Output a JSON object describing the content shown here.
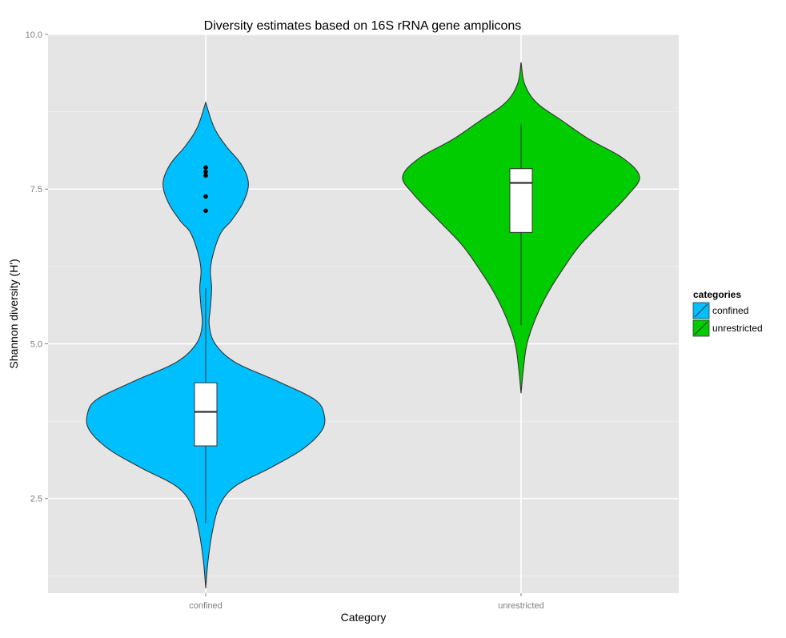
{
  "chart_data": {
    "type": "violin",
    "title": "Diversity estimates based on 16S rRNA gene amplicons",
    "xlabel": "Category",
    "ylabel": "Shannon diversity (H')",
    "categories": [
      "confined",
      "unrestricted"
    ],
    "ylim": [
      0.97,
      10.0
    ],
    "yticks": [
      2.5,
      5.0,
      7.5,
      10.0
    ],
    "ytick_labels": [
      "2.5",
      "5.0",
      "7.5",
      "10.0"
    ],
    "grid": true,
    "legend": {
      "title": "categories",
      "placement": "right",
      "entries": [
        "confined",
        "unrestricted"
      ]
    },
    "series": [
      {
        "name": "confined",
        "color": "#00BFFF",
        "min": 1.05,
        "max": 8.9,
        "density": [
          [
            1.05,
            0.0
          ],
          [
            1.5,
            0.02
          ],
          [
            2.0,
            0.06
          ],
          [
            2.4,
            0.12
          ],
          [
            2.7,
            0.25
          ],
          [
            3.0,
            0.55
          ],
          [
            3.3,
            0.82
          ],
          [
            3.6,
            0.98
          ],
          [
            3.85,
            1.0
          ],
          [
            4.1,
            0.92
          ],
          [
            4.4,
            0.6
          ],
          [
            4.7,
            0.25
          ],
          [
            5.0,
            0.08
          ],
          [
            5.3,
            0.03
          ],
          [
            5.6,
            0.04
          ],
          [
            5.9,
            0.05
          ],
          [
            6.2,
            0.04
          ],
          [
            6.5,
            0.07
          ],
          [
            6.8,
            0.13
          ],
          [
            7.0,
            0.22
          ],
          [
            7.3,
            0.32
          ],
          [
            7.6,
            0.36
          ],
          [
            7.9,
            0.3
          ],
          [
            8.2,
            0.17
          ],
          [
            8.5,
            0.07
          ],
          [
            8.9,
            0.0
          ]
        ],
        "box": {
          "whisker_low": 2.1,
          "q1": 3.35,
          "median": 3.9,
          "q3": 4.37,
          "whisker_high": 5.9
        },
        "outliers": [
          7.15,
          7.38,
          7.72,
          7.78,
          7.85
        ]
      },
      {
        "name": "unrestricted",
        "color": "#00CC00",
        "min": 4.2,
        "max": 9.55,
        "density": [
          [
            4.2,
            0.0
          ],
          [
            4.6,
            0.02
          ],
          [
            5.0,
            0.05
          ],
          [
            5.4,
            0.12
          ],
          [
            5.8,
            0.22
          ],
          [
            6.2,
            0.35
          ],
          [
            6.6,
            0.5
          ],
          [
            7.0,
            0.7
          ],
          [
            7.4,
            0.9
          ],
          [
            7.7,
            1.0
          ],
          [
            8.0,
            0.86
          ],
          [
            8.3,
            0.58
          ],
          [
            8.6,
            0.35
          ],
          [
            8.9,
            0.13
          ],
          [
            9.2,
            0.03
          ],
          [
            9.55,
            0.0
          ]
        ],
        "box": {
          "whisker_low": 5.3,
          "q1": 6.8,
          "median": 7.6,
          "q3": 7.83,
          "whisker_high": 8.55
        },
        "outliers": []
      }
    ]
  }
}
